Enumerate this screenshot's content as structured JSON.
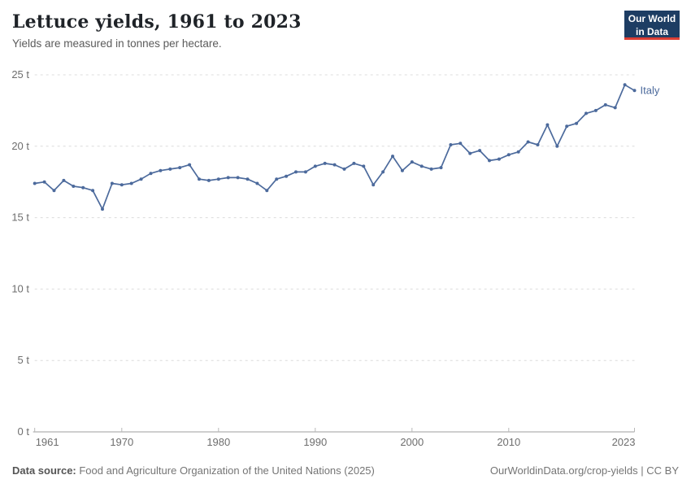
{
  "header": {
    "title": "Lettuce yields, 1961 to 2023",
    "subtitle": "Yields are measured in tonnes per hectare."
  },
  "logo": {
    "line1": "Our World",
    "line2": "in Data"
  },
  "footer": {
    "source_label": "Data source:",
    "source_text": " Food and Agriculture Organization of the United Nations (2025)",
    "right_text": "OurWorldinData.org/crop-yields | CC BY"
  },
  "colors": {
    "series": "#4c6a9c",
    "grid": "#dcdcdc",
    "axis": "#9e9e9e",
    "tick": "#b8b8b8",
    "tick_label": "#6e6e6e",
    "logo_bg": "#1d3d63",
    "logo_red": "#dc3e34"
  },
  "chart_data": {
    "type": "line",
    "title": "Lettuce yields, 1961 to 2023",
    "ylabel": "tonnes per hectare",
    "unit_suffix": " t",
    "ylim": [
      0,
      25
    ],
    "yticks": [
      0,
      5,
      10,
      15,
      20,
      25
    ],
    "xticks": [
      1961,
      1970,
      1980,
      1990,
      2000,
      2010,
      2023
    ],
    "grid": "dashed-horizontal",
    "legend_position": "end-of-line-label",
    "series": [
      {
        "name": "Italy",
        "label": "Italy",
        "x_start": 1961,
        "x_step": 1,
        "values": [
          17.4,
          17.5,
          16.9,
          17.6,
          17.2,
          17.1,
          16.9,
          15.6,
          17.4,
          17.3,
          17.4,
          17.7,
          18.1,
          18.3,
          18.4,
          18.5,
          18.7,
          17.7,
          17.6,
          17.7,
          17.8,
          17.8,
          17.7,
          17.4,
          16.9,
          17.7,
          17.9,
          18.2,
          18.2,
          18.6,
          18.8,
          18.7,
          18.4,
          18.8,
          18.6,
          17.3,
          18.2,
          19.3,
          18.3,
          18.9,
          18.6,
          18.4,
          18.5,
          20.1,
          20.2,
          19.5,
          19.7,
          19.0,
          19.1,
          19.4,
          19.6,
          20.3,
          20.1,
          21.5,
          20.0,
          21.4,
          21.6,
          22.3,
          22.5,
          22.9,
          22.7,
          24.3,
          23.9
        ]
      }
    ],
    "xlim": [
      1961,
      2023
    ]
  }
}
